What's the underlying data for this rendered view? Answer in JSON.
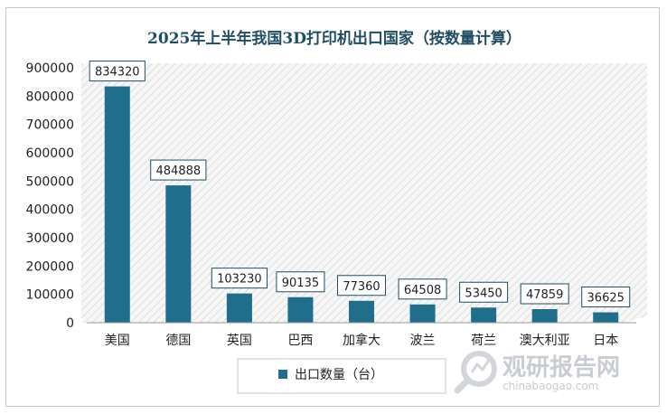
{
  "chart_data": {
    "type": "bar",
    "title": "2025年上半年我国3D打印机出口国家（按数量计算）",
    "categories": [
      "美国",
      "德国",
      "英国",
      "巴西",
      "加拿大",
      "波兰",
      "荷兰",
      "澳大利亚",
      "日本"
    ],
    "series": [
      {
        "name": "出口数量（台）",
        "values": [
          834320,
          484888,
          103230,
          90135,
          77360,
          64508,
          53450,
          47859,
          36625
        ]
      }
    ],
    "value_labels": [
      "834320",
      "484888",
      "103230",
      "90135",
      "77360",
      "64508",
      "53450",
      "47859",
      "36625"
    ],
    "ylim": [
      0,
      900000
    ],
    "yticks": [
      "0",
      "100000",
      "200000",
      "300000",
      "400000",
      "500000",
      "600000",
      "700000",
      "800000",
      "900000"
    ],
    "grid": false,
    "legend_position": "bottom",
    "bar_color": "#1f6e8c"
  },
  "watermark": {
    "brand": "观研报告网",
    "url": "chinabaogao.com"
  }
}
